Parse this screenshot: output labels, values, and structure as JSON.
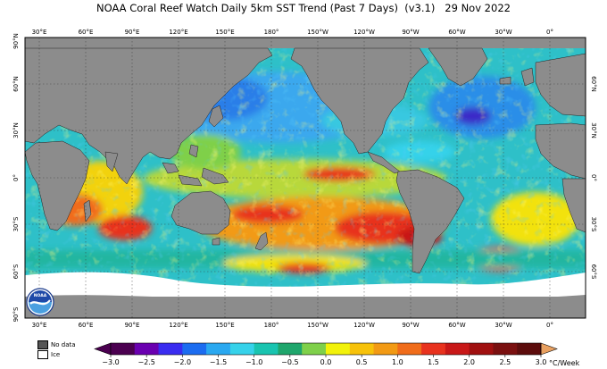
{
  "title": "NOAA Coral Reef Watch Daily 5km SST Trend (Past 7 Days)  (v3.1)   29 Nov 2022",
  "map": {
    "lon_labels": [
      "30°E",
      "60°E",
      "90°E",
      "120°E",
      "150°E",
      "180°",
      "150°W",
      "120°W",
      "90°W",
      "60°W",
      "30°W",
      "0°"
    ],
    "lat_labels_left": [
      "90°N",
      "60°N",
      "30°N",
      "0°",
      "30°S",
      "60°S",
      "90°S"
    ],
    "lat_labels_right": [
      "60°N",
      "30°N",
      "0°",
      "30°S",
      "60°S"
    ],
    "land_color": "#8c8c8c",
    "ice_color": "#ffffff"
  },
  "legend": {
    "no_data_label": "No data",
    "ice_label": "Ice",
    "no_data_color": "#555555",
    "ice_color": "#ffffff"
  },
  "colorbar": {
    "ticks": [
      "−3.0",
      "−2.5",
      "−2.0",
      "−1.5",
      "−1.0",
      "−0.5",
      "0.0",
      "0.5",
      "1.0",
      "1.5",
      "2.0",
      "2.5",
      "3.0"
    ],
    "unit": "°C/Week",
    "colors": [
      "#4b0050",
      "#6a00b0",
      "#3a2cf0",
      "#1c6cf0",
      "#2aa8f0",
      "#36d2ea",
      "#19c4b0",
      "#1fa66c",
      "#7fd04a",
      "#f2f20a",
      "#f7c20a",
      "#f29a14",
      "#f06c1a",
      "#e8321e",
      "#c81818",
      "#a01010",
      "#7a1010",
      "#5c0c0c"
    ]
  },
  "logo_text": "NOAA"
}
